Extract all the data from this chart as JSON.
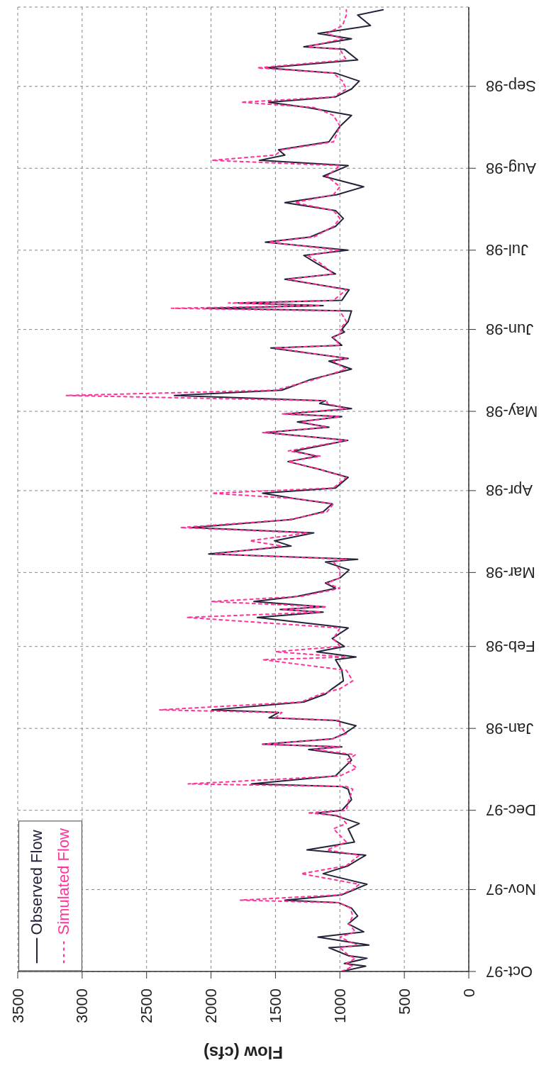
{
  "chart_data": {
    "type": "line",
    "orientation": "horizontal",
    "xlabel": "Flow (cfs)",
    "grid": true,
    "legend": "bottom left",
    "marker": "none",
    "ylim": [
      "1997-10-01",
      "1998-10-01"
    ],
    "xlim": [
      3500,
      0
    ],
    "xticks": [
      3500,
      3000,
      2500,
      2000,
      1500,
      1000,
      500,
      0
    ],
    "yticks": [
      {
        "value": "1997-10-01",
        "label": "Oct-97"
      },
      {
        "value": "1997-11-01",
        "label": "Nov-97"
      },
      {
        "value": "1997-12-01",
        "label": "Dec-97"
      },
      {
        "value": "1998-01-01",
        "label": "Jan-98"
      },
      {
        "value": "1998-02-01",
        "label": "Feb-98"
      },
      {
        "value": "1998-03-01",
        "label": "Mar-98"
      },
      {
        "value": "1998-04-01",
        "label": "Apr-98"
      },
      {
        "value": "1998-05-01",
        "label": "May-98"
      },
      {
        "value": "1998-06-01",
        "label": "Jun-98"
      },
      {
        "value": "1998-07-01",
        "label": "Jul-98"
      },
      {
        "value": "1998-08-01",
        "label": "Aug-98"
      },
      {
        "value": "1998-09-01",
        "label": "Sep-98"
      }
    ],
    "x": [
      "1997-10-01",
      "1997-10-03",
      "1997-10-04",
      "1997-10-06",
      "1997-10-07",
      "1997-10-10",
      "1997-10-11",
      "1997-10-14",
      "1997-10-16",
      "1997-10-19",
      "1997-10-22",
      "1997-10-25",
      "1997-10-27",
      "1997-10-28",
      "1997-10-30",
      "1997-11-01",
      "1997-11-03",
      "1997-11-07",
      "1997-11-10",
      "1997-11-14",
      "1997-11-16",
      "1997-11-19",
      "1997-11-24",
      "1997-11-26",
      "1997-11-29",
      "1997-11-30",
      "1997-12-01",
      "1997-12-05",
      "1997-12-09",
      "1997-12-10",
      "1997-12-11",
      "1997-12-14",
      "1997-12-17",
      "1997-12-20",
      "1997-12-22",
      "1997-12-24",
      "1997-12-25",
      "1997-12-26",
      "1997-12-28",
      "1997-12-30",
      "1998-01-02",
      "1998-01-04",
      "1998-01-05",
      "1998-01-07",
      "1998-01-08",
      "1998-01-11",
      "1998-01-14",
      "1998-01-16",
      "1998-01-19",
      "1998-01-23",
      "1998-01-27",
      "1998-01-28",
      "1998-01-30",
      "1998-02-01",
      "1998-02-04",
      "1998-02-08",
      "1998-02-12",
      "1998-02-14",
      "1998-02-15",
      "1998-02-16",
      "1998-02-18",
      "1998-02-20",
      "1998-02-23",
      "1998-02-25",
      "1998-02-27",
      "1998-03-02",
      "1998-03-05",
      "1998-03-06",
      "1998-03-08",
      "1998-03-11",
      "1998-03-13",
      "1998-03-16",
      "1998-03-18",
      "1998-03-21",
      "1998-03-24",
      "1998-03-27",
      "1998-03-29",
      "1998-03-31",
      "1998-04-02",
      "1998-04-06",
      "1998-04-09",
      "1998-04-12",
      "1998-04-14",
      "1998-04-16",
      "1998-04-20",
      "1998-04-23",
      "1998-04-25",
      "1998-04-27",
      "1998-04-29",
      "1998-04-30",
      "1998-05-02",
      "1998-05-04",
      "1998-05-05",
      "1998-05-07",
      "1998-05-09",
      "1998-05-13",
      "1998-05-17",
      "1998-05-20",
      "1998-05-21",
      "1998-05-25",
      "1998-05-26",
      "1998-05-29",
      "1998-05-31",
      "1998-06-01",
      "1998-06-04",
      "1998-06-08",
      "1998-06-09",
      "1998-06-10",
      "1998-06-11",
      "1998-06-12",
      "1998-06-16",
      "1998-06-20",
      "1998-06-22",
      "1998-06-26",
      "1998-06-29",
      "1998-07-01",
      "1998-07-04",
      "1998-07-06",
      "1998-07-10",
      "1998-07-13",
      "1998-07-16",
      "1998-07-19",
      "1998-07-22",
      "1998-07-25",
      "1998-07-29",
      "1998-08-02",
      "1998-08-04",
      "1998-08-06",
      "1998-08-08",
      "1998-08-11",
      "1998-08-17",
      "1998-08-21",
      "1998-08-24",
      "1998-08-26",
      "1998-08-28",
      "1998-08-31",
      "1998-09-03",
      "1998-09-06",
      "1998-09-08",
      "1998-09-11",
      "1998-09-15",
      "1998-09-16",
      "1998-09-19",
      "1998-09-21",
      "1998-09-24",
      "1998-09-28",
      "1998-09-30"
    ],
    "series": [
      {
        "name": "Observed Flow",
        "color": "#23233a",
        "line_style": "solid",
        "values": [
          985,
          800,
          965,
          790,
          936,
          1085,
          775,
          1170,
          815,
          936,
          862,
          910,
          1010,
          1427,
          985,
          887,
          790,
          1130,
          936,
          800,
          1255,
          887,
          936,
          850,
          1034,
          1180,
          985,
          910,
          936,
          985,
          1686,
          1034,
          973,
          910,
          936,
          1243,
          985,
          1600,
          1060,
          965,
          875,
          1034,
          1550,
          1476,
          1993,
          1280,
          1112,
          1060,
          973,
          985,
          1034,
          875,
          1180,
          965,
          1060,
          936,
          1641,
          1130,
          1464,
          1130,
          1667,
          1330,
          1034,
          1112,
          997,
          929,
          1112,
          862,
          2018,
          1379,
          1508,
          1203,
          2149,
          1379,
          1130,
          1060,
          1356,
          1600,
          1034,
          936,
          1157,
          1403,
          1180,
          1354,
          939,
          1578,
          1085,
          1330,
          985,
          1427,
          910,
          1157,
          1112,
          2284,
          1451,
          1230,
          910,
          1085,
          936,
          1536,
          985,
          1060,
          965,
          985,
          936,
          910,
          2037,
          1130,
          1790,
          985,
          929,
          1427,
          1034,
          1180,
          1280,
          939,
          1578,
          1230,
          1034,
          973,
          1034,
          1427,
          1022,
          815,
          1130,
          936,
          1624,
          1427,
          1476,
          1085,
          997,
          910,
          1255,
          1553,
          1034,
          910,
          850,
          1034,
          1578,
          862,
          965,
          1280,
          910,
          1170,
          763,
          862,
          665
        ]
      },
      {
        "name": "Simulated Flow",
        "color": "#ff3399",
        "line_style": "dotted",
        "values": [
          985,
          900,
          950,
          880,
          930,
          1000,
          870,
          1000,
          880,
          930,
          900,
          920,
          1000,
          1772,
          1000,
          900,
          850,
          1300,
          950,
          850,
          1100,
          950,
          1050,
          950,
          1000,
          1250,
          950,
          930,
          900,
          950,
          2177,
          1000,
          870,
          950,
          880,
          1200,
          1000,
          1600,
          1060,
          950,
          1000,
          1000,
          1500,
          1450,
          2398,
          1300,
          1150,
          1000,
          900,
          950,
          1600,
          950,
          1500,
          1000,
          1050,
          1000,
          2189,
          1150,
          1450,
          1100,
          1999,
          1300,
          1000,
          1100,
          1000,
          1000,
          1050,
          950,
          1968,
          1450,
          1700,
          1250,
          2238,
          1400,
          1100,
          1050,
          1350,
          1993,
          1050,
          950,
          1150,
          1400,
          1150,
          1400,
          950,
          1600,
          1100,
          1300,
          1000,
          1450,
          950,
          1100,
          1100,
          3124,
          1500,
          1200,
          950,
          1050,
          950,
          1500,
          1000,
          1050,
          980,
          1000,
          950,
          1000,
          2307,
          1150,
          1864,
          1050,
          950,
          1400,
          1050,
          1150,
          1250,
          1000,
          1550,
          1200,
          1050,
          1000,
          1050,
          1350,
          1050,
          1000,
          1100,
          1000,
          1993,
          1500,
          1450,
          1050,
          1000,
          1050,
          1200,
          1768,
          1050,
          950,
          980,
          1050,
          1640,
          950,
          1000,
          1250,
          980,
          1100,
          980,
          950,
          950
        ]
      }
    ]
  }
}
